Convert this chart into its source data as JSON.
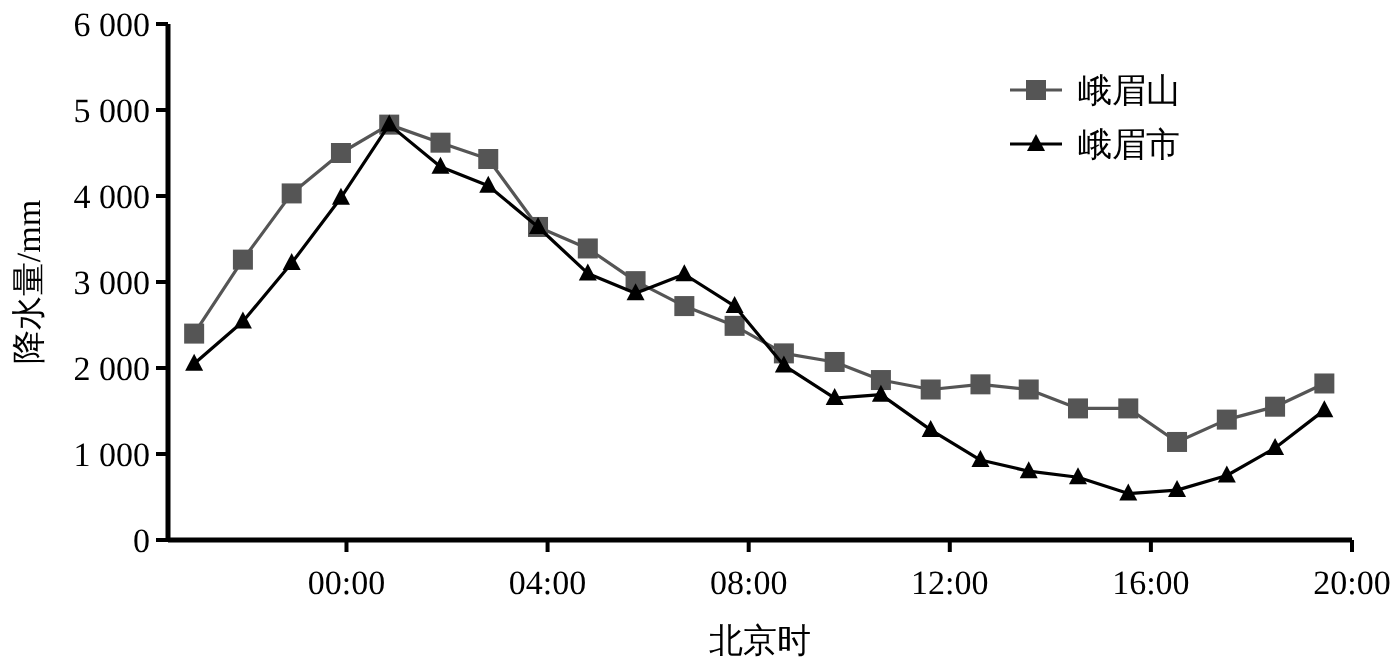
{
  "chart_data": {
    "type": "line",
    "xlabel": "北京时",
    "ylabel": "降水量/mm",
    "xlim": [
      -3.55,
      20
    ],
    "ylim": [
      0,
      6000
    ],
    "xticks": [
      {
        "value": 0,
        "label": "00:00"
      },
      {
        "value": 4,
        "label": "04:00"
      },
      {
        "value": 8,
        "label": "08:00"
      },
      {
        "value": 12,
        "label": "12:00"
      },
      {
        "value": 16,
        "label": "16:00"
      },
      {
        "value": 20,
        "label": "20:00"
      }
    ],
    "yticks": [
      0,
      {
        "value": 1000,
        "label": "1 000"
      },
      {
        "value": 2000,
        "label": "2 000"
      },
      {
        "value": 3000,
        "label": "3 000"
      },
      {
        "value": 4000,
        "label": "4 000"
      },
      {
        "value": 5000,
        "label": "5 000"
      },
      {
        "value": 6000,
        "label": "6 000"
      }
    ],
    "x": [
      -3.03,
      -2.06,
      -1.09,
      -0.11,
      0.85,
      1.87,
      2.82,
      3.81,
      4.8,
      5.75,
      6.72,
      7.72,
      8.7,
      9.71,
      10.63,
      11.62,
      12.61,
      13.57,
      14.55,
      15.55,
      16.52,
      17.51,
      18.47,
      19.45
    ],
    "legend": "top right",
    "line_style": "solid",
    "series": [
      {
        "name": "峨眉山",
        "color": "#555555",
        "marker": "square",
        "values": [
          2400,
          3260,
          4030,
          4500,
          4830,
          4620,
          4430,
          3640,
          3390,
          3010,
          2720,
          2490,
          2170,
          2070,
          1860,
          1750,
          1810,
          1750,
          1530,
          1530,
          1140,
          1400,
          1550,
          1820
        ]
      },
      {
        "name": "峨眉市",
        "color": "#000000",
        "marker": "triangle",
        "values": [
          2050,
          2540,
          3220,
          3980,
          4830,
          4340,
          4120,
          3640,
          3100,
          2870,
          3090,
          2720,
          2030,
          1650,
          1690,
          1280,
          930,
          800,
          730,
          540,
          580,
          750,
          1070,
          1510
        ]
      }
    ]
  }
}
